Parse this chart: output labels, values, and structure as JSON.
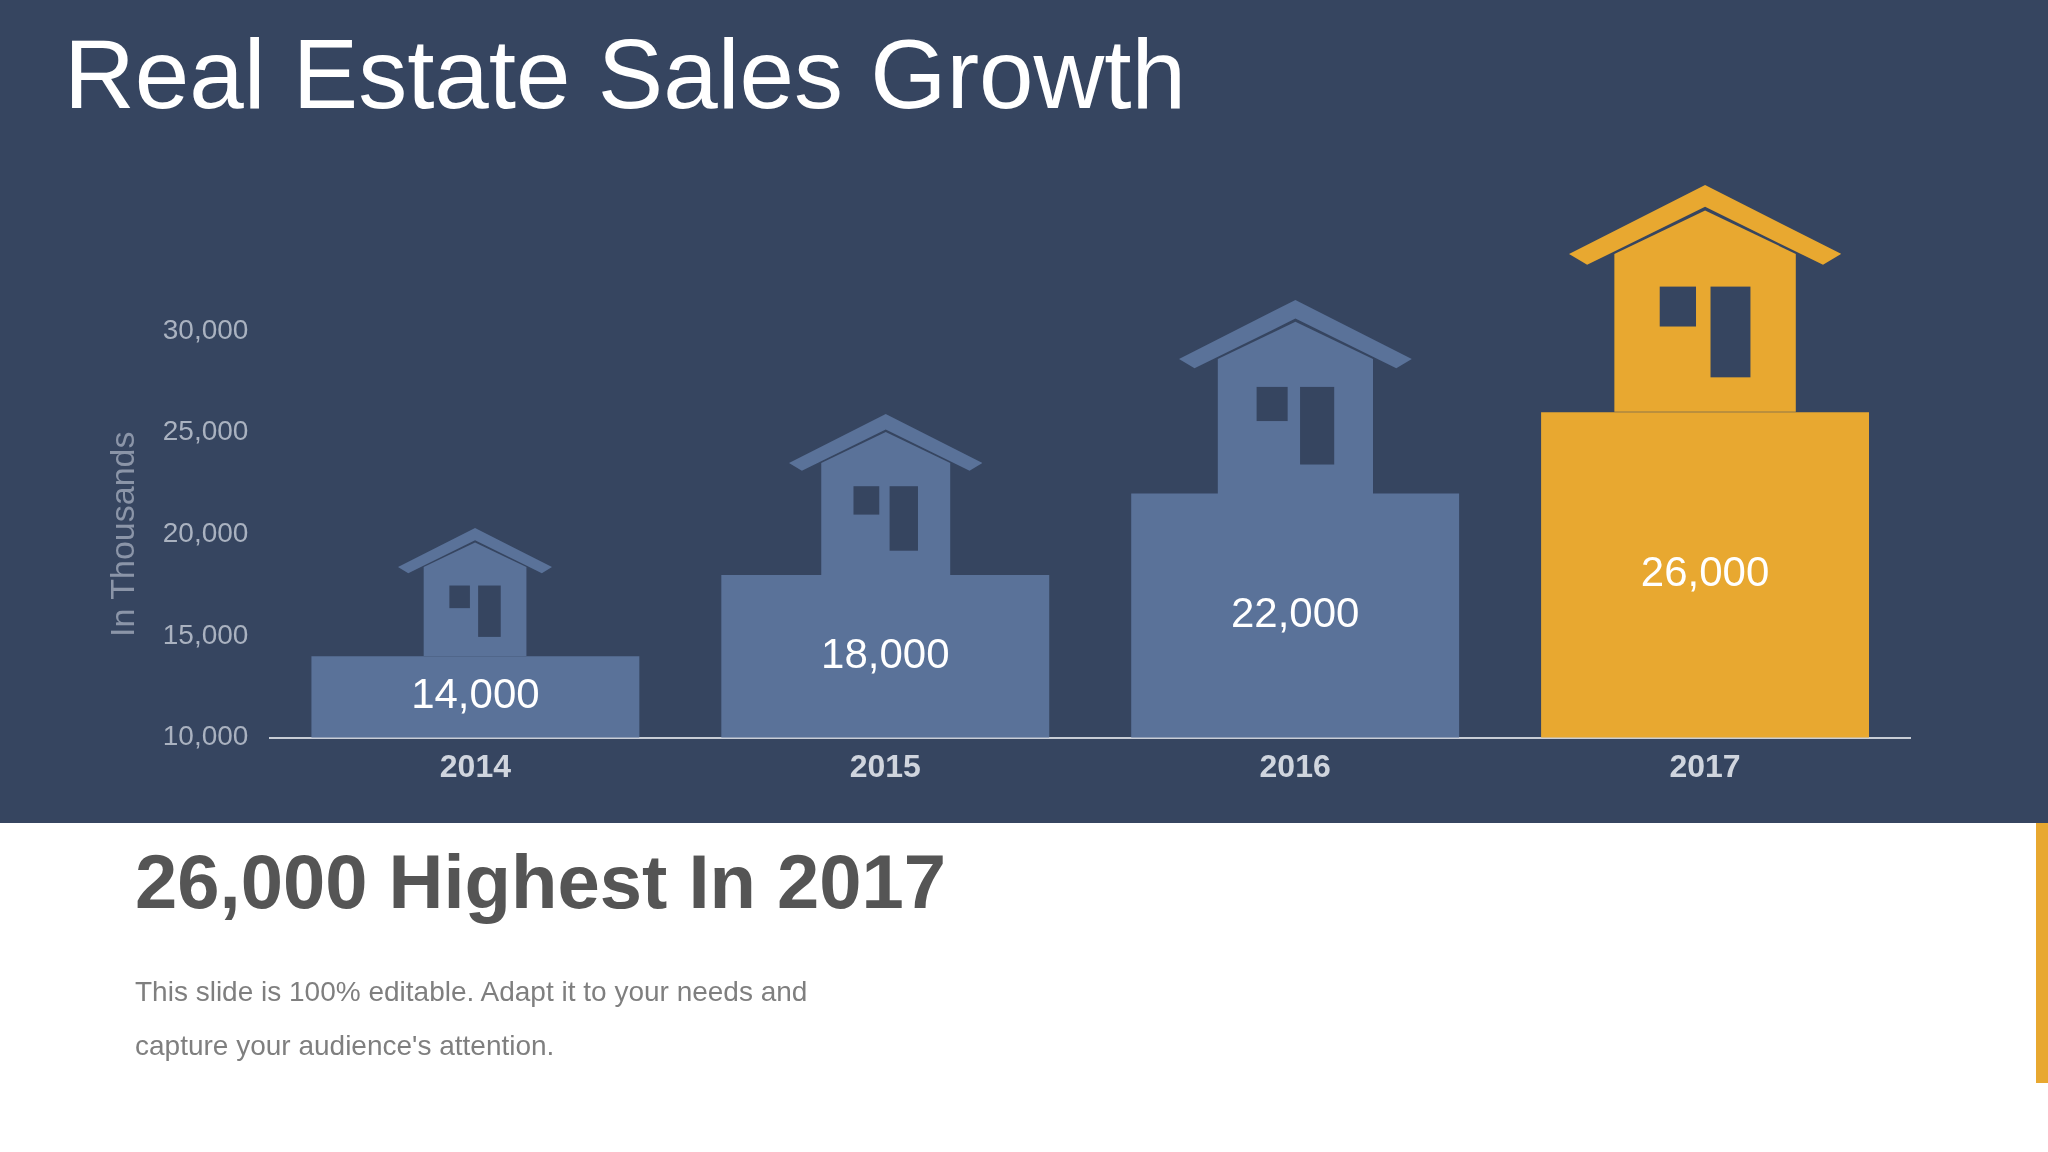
{
  "chart_data": {
    "type": "bar",
    "title": "Real Estate Sales Growth",
    "ylabel": "In Thousands",
    "categories": [
      "2014",
      "2015",
      "2016",
      "2017"
    ],
    "values": [
      14000,
      18000,
      22000,
      26000
    ],
    "colors": [
      "#5a7299",
      "#5a7299",
      "#5a7299",
      "#e8a830"
    ],
    "ylim": [
      10000,
      30000
    ],
    "yticks": [
      {
        "value": 10000,
        "label": "10,000"
      },
      {
        "value": 15000,
        "label": "15,000"
      },
      {
        "value": 20000,
        "label": "20,000"
      },
      {
        "value": 25000,
        "label": "25,000"
      },
      {
        "value": 30000,
        "label": "30,000"
      }
    ],
    "grid": false,
    "legend": false,
    "value_labels": [
      "14,000",
      "18,000",
      "22,000",
      "26,000"
    ],
    "annotations": [
      "26,000 Highest  In 2017",
      "This slide is 100% editable. Adapt it to your needs and capture your audience's attention."
    ]
  }
}
